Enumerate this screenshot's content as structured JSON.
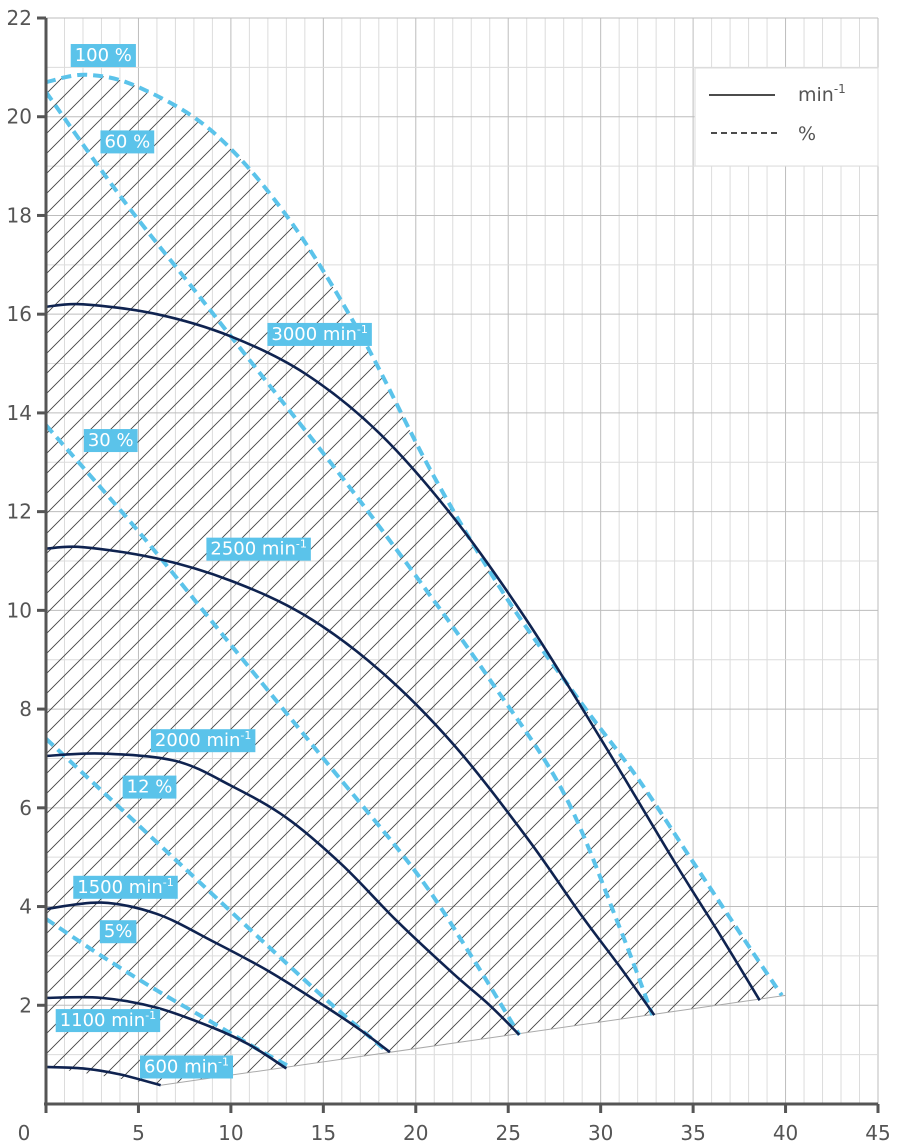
{
  "chart_data": {
    "type": "line",
    "title": "",
    "xlabel": "",
    "ylabel": "",
    "xlim": [
      0,
      45
    ],
    "ylim": [
      0,
      22
    ],
    "x_ticks": [
      0,
      5,
      10,
      15,
      20,
      25,
      30,
      35,
      40,
      45
    ],
    "y_ticks": [
      2,
      4,
      6,
      8,
      10,
      12,
      14,
      16,
      18,
      20,
      22
    ],
    "grid": true,
    "legend": {
      "placement": "top-right",
      "entries": [
        {
          "label": "min",
          "sup": "-1",
          "style": "solid"
        },
        {
          "label": "%",
          "sup": "",
          "style": "dashed"
        }
      ]
    },
    "colors": {
      "speed": "#0f2350",
      "percent": "#5bc3ea",
      "label_bg": "#5bc3ea",
      "axis": "#555555",
      "grid": "#c8c8c8",
      "hatch": "#444444"
    },
    "speed_curves": [
      {
        "name": "3000 min",
        "sup": "-1",
        "label_at": [
          14.8,
          15.6
        ],
        "points": [
          [
            0,
            16.15
          ],
          [
            2,
            16.2
          ],
          [
            6,
            16.0
          ],
          [
            10,
            15.55
          ],
          [
            14,
            14.8
          ],
          [
            18,
            13.6
          ],
          [
            22,
            11.9
          ],
          [
            26,
            9.8
          ],
          [
            30,
            7.4
          ],
          [
            34,
            4.9
          ],
          [
            36.5,
            3.4
          ],
          [
            38.6,
            2.1
          ]
        ]
      },
      {
        "name": "2500 min",
        "sup": "-1",
        "label_at": [
          11.5,
          11.25
        ],
        "points": [
          [
            0,
            11.25
          ],
          [
            2,
            11.28
          ],
          [
            6,
            11.05
          ],
          [
            10,
            10.6
          ],
          [
            14,
            9.9
          ],
          [
            18,
            8.8
          ],
          [
            22,
            7.3
          ],
          [
            26,
            5.4
          ],
          [
            29,
            3.8
          ],
          [
            31,
            2.8
          ],
          [
            32.9,
            1.8
          ]
        ]
      },
      {
        "name": "2000 min",
        "sup": "-1",
        "label_at": [
          8.5,
          7.37
        ],
        "points": [
          [
            0,
            7.05
          ],
          [
            3,
            7.1
          ],
          [
            7,
            6.95
          ],
          [
            10,
            6.45
          ],
          [
            13,
            5.8
          ],
          [
            16,
            4.85
          ],
          [
            19,
            3.7
          ],
          [
            22,
            2.65
          ],
          [
            24,
            2.0
          ],
          [
            25.6,
            1.4
          ]
        ]
      },
      {
        "name": "1500 min",
        "sup": "-1",
        "label_at": [
          4.3,
          4.4
        ],
        "points": [
          [
            0,
            3.95
          ],
          [
            3,
            4.08
          ],
          [
            6,
            3.85
          ],
          [
            9,
            3.3
          ],
          [
            12,
            2.7
          ],
          [
            15,
            2.0
          ],
          [
            17,
            1.5
          ],
          [
            18.6,
            1.05
          ]
        ]
      },
      {
        "name": "1100 min",
        "sup": "-1",
        "label_at": [
          3.35,
          1.7
        ],
        "points": [
          [
            0,
            2.15
          ],
          [
            3,
            2.15
          ],
          [
            6,
            1.95
          ],
          [
            9,
            1.55
          ],
          [
            11,
            1.2
          ],
          [
            13.0,
            0.72
          ]
        ]
      },
      {
        "name": "600 min",
        "sup": "-1",
        "label_at": [
          7.6,
          0.76
        ],
        "points": [
          [
            0,
            0.75
          ],
          [
            2,
            0.72
          ],
          [
            4,
            0.6
          ],
          [
            6.2,
            0.38
          ]
        ]
      }
    ],
    "percent_curves": [
      {
        "name": "100 %",
        "label_at": [
          3.1,
          21.25
        ],
        "points": [
          [
            0,
            20.7
          ],
          [
            2.2,
            20.85
          ],
          [
            5,
            20.6
          ],
          [
            9,
            19.7
          ],
          [
            13,
            18.0
          ],
          [
            17,
            15.6
          ],
          [
            21,
            12.7
          ],
          [
            25,
            10.2
          ],
          [
            29,
            8.1
          ],
          [
            32,
            6.6
          ],
          [
            35,
            4.9
          ],
          [
            38,
            3.2
          ],
          [
            39.8,
            2.2
          ]
        ]
      },
      {
        "name": "60 %",
        "label_at": [
          4.4,
          19.5
        ],
        "points": [
          [
            0,
            20.5
          ],
          [
            4,
            18.4
          ],
          [
            8,
            16.5
          ],
          [
            12,
            14.6
          ],
          [
            16,
            12.7
          ],
          [
            20,
            10.7
          ],
          [
            24,
            8.6
          ],
          [
            28,
            6.3
          ],
          [
            31,
            3.6
          ],
          [
            32.8,
            1.8
          ]
        ]
      },
      {
        "name": "30 %",
        "label_at": [
          3.5,
          13.45
        ],
        "points": [
          [
            0,
            13.75
          ],
          [
            5,
            11.6
          ],
          [
            10,
            9.3
          ],
          [
            15,
            7.0
          ],
          [
            20,
            4.7
          ],
          [
            23,
            3.0
          ],
          [
            25.6,
            1.4
          ]
        ]
      },
      {
        "name": "12 %",
        "label_at": [
          5.6,
          6.43
        ],
        "points": [
          [
            0,
            7.4
          ],
          [
            4,
            6.0
          ],
          [
            8,
            4.6
          ],
          [
            12,
            3.2
          ],
          [
            15.5,
            2.0
          ],
          [
            18.5,
            1.05
          ]
        ]
      },
      {
        "name": "5%",
        "label_at": [
          3.9,
          3.5
        ],
        "points": [
          [
            0,
            3.75
          ],
          [
            3,
            3.0
          ],
          [
            6,
            2.3
          ],
          [
            9,
            1.65
          ],
          [
            11.5,
            1.1
          ],
          [
            13.2,
            0.75
          ]
        ]
      }
    ],
    "min_boundary": [
      [
        6.2,
        0.38
      ],
      [
        40,
        2.2
      ]
    ]
  }
}
